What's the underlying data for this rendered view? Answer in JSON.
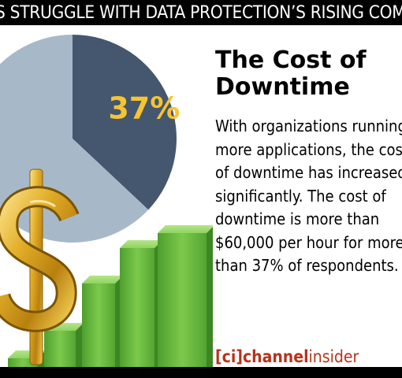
{
  "banner": {
    "text": "S STRUGGLE WITH DATA PROTECTION’S RISING COMPLEXITY"
  },
  "article": {
    "title_lines": [
      "The Cost of",
      "Downtime"
    ],
    "body_lines": [
      "With organizations running",
      "more applications, the cost",
      "of downtime has increased",
      "significantly. The cost of",
      "downtime is more than",
      "$60,000 per hour for more",
      "than 37% of respondents."
    ]
  },
  "logo": {
    "bracket_open": "[",
    "ci": "ci",
    "bracket_close": "]",
    "channel": "channel",
    "insider": "insider",
    "color": "#b5331d"
  },
  "colors": {
    "pie_highlight": "#44576e",
    "pie_rest": "#a7b8c9",
    "label": "#f6c430",
    "bars": "#5fb33b",
    "dollar": "#d9a21c"
  },
  "chart_data": {
    "type": "pie",
    "slices": [
      {
        "value": 37,
        "label": "37%"
      },
      {
        "value": 63,
        "label": ""
      }
    ]
  }
}
